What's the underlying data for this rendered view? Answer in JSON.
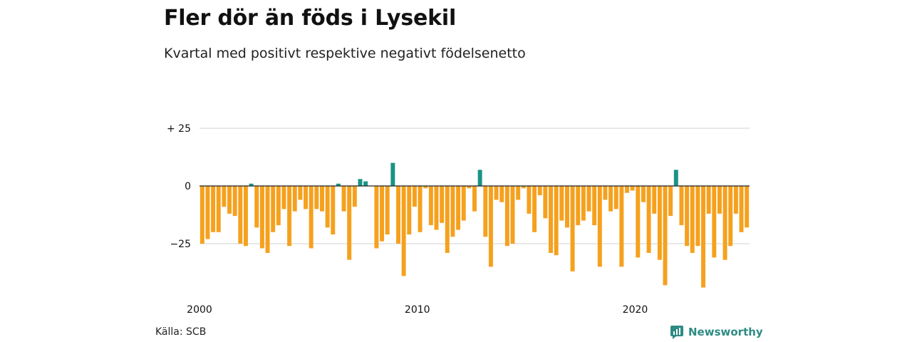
{
  "title": "Fler dör än föds i Lysekil",
  "subtitle": "Kvartal med positivt respektive negativt födelsenetto",
  "source": "Källa: SCB",
  "brand": {
    "name": "Newsworthy",
    "icon": "newsworthy-logo-icon"
  },
  "colors": {
    "positive": "#1a9484",
    "negative": "#f5a11e",
    "grid": "#d9d9d9",
    "zero": "#222222"
  },
  "chart_data": {
    "type": "bar",
    "x_start": "2000 Q1",
    "x_ticks": [
      "2000",
      "2010",
      "2020"
    ],
    "y_ticks": [
      "+ 25",
      "0",
      "−25"
    ],
    "y_tick_values": [
      25,
      0,
      -25
    ],
    "ylim": [
      -47,
      31
    ],
    "grid": true,
    "values": [
      -25,
      -23,
      -20,
      -20,
      -9,
      -12,
      -13,
      -25,
      -26,
      1,
      -18,
      -27,
      -29,
      -20,
      -17,
      -10,
      -26,
      -11,
      -6,
      -10,
      -27,
      -10,
      -11,
      -18,
      -21,
      1,
      -11,
      -32,
      -9,
      3,
      2,
      0,
      -27,
      -24,
      -21,
      10,
      -25,
      -39,
      -21,
      -9,
      -20,
      -1,
      -17,
      -19,
      -16,
      -29,
      -22,
      -19,
      -15,
      -1,
      -11,
      7,
      -22,
      -35,
      -6,
      -7,
      -26,
      -25,
      -6,
      -1,
      -12,
      -20,
      -4,
      -14,
      -29,
      -30,
      -15,
      -18,
      -37,
      -17,
      -15,
      -11,
      -17,
      -35,
      -6,
      -11,
      -10,
      -35,
      -3,
      -2,
      -31,
      -7,
      -29,
      -12,
      -32,
      -43,
      -13,
      7,
      -17,
      -26,
      -29,
      -26,
      -44,
      -12,
      -31,
      -12,
      -32,
      -26,
      -12,
      -20,
      -18
    ]
  }
}
